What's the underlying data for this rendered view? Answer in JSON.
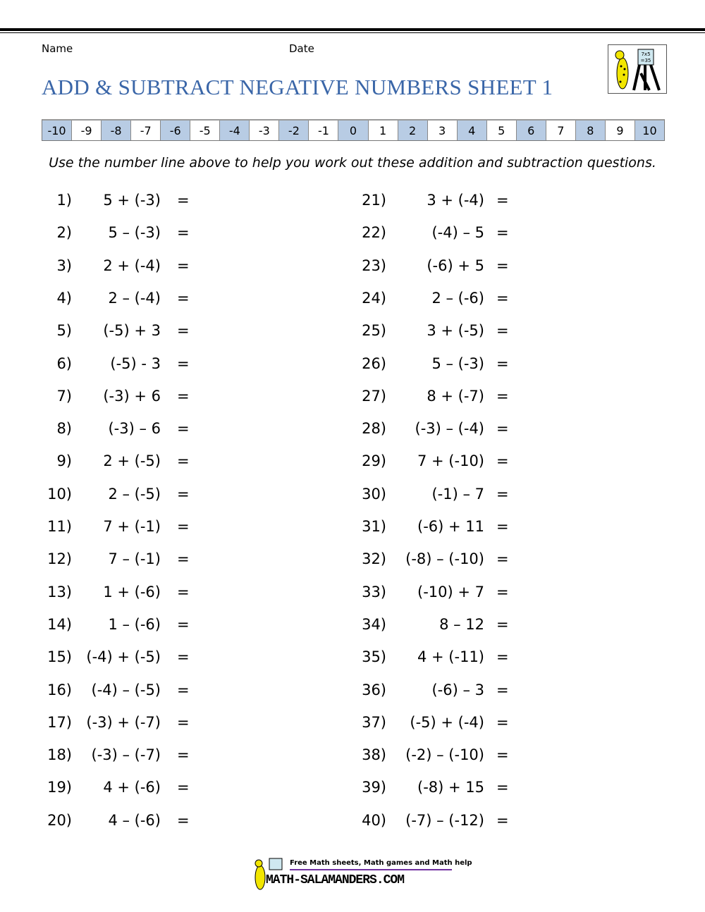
{
  "header": {
    "name_label": "Name",
    "date_label": "Date",
    "title": "ADD & SUBTRACT NEGATIVE NUMBERS SHEET 1",
    "logo_text": "7x5 = 35"
  },
  "number_line": [
    "-10",
    "-9",
    "-8",
    "-7",
    "-6",
    "-5",
    "-4",
    "-3",
    "-2",
    "-1",
    "0",
    "1",
    "2",
    "3",
    "4",
    "5",
    "6",
    "7",
    "8",
    "9",
    "10"
  ],
  "number_line_highlight_color": "#b8cce4",
  "title_color": "#3a66a8",
  "instructions": "Use the number line above to help you work out these addition and subtraction questions.",
  "questions": [
    {
      "n": "1)",
      "e": "5 + (-3)"
    },
    {
      "n": "2)",
      "e": "5 – (-3)"
    },
    {
      "n": "3)",
      "e": "2 + (-4)"
    },
    {
      "n": "4)",
      "e": "2 – (-4)"
    },
    {
      "n": "5)",
      "e": "(-5) + 3"
    },
    {
      "n": "6)",
      "e": "(-5) - 3"
    },
    {
      "n": "7)",
      "e": "(-3) + 6"
    },
    {
      "n": "8)",
      "e": "(-3) – 6"
    },
    {
      "n": "9)",
      "e": "2 + (-5)"
    },
    {
      "n": "10)",
      "e": "2 – (-5)"
    },
    {
      "n": "11)",
      "e": "7 + (-1)"
    },
    {
      "n": "12)",
      "e": "7 – (-1)"
    },
    {
      "n": "13)",
      "e": "1 + (-6)"
    },
    {
      "n": "14)",
      "e": "1 – (-6)"
    },
    {
      "n": "15)",
      "e": "(-4) + (-5)"
    },
    {
      "n": "16)",
      "e": "(-4) – (-5)"
    },
    {
      "n": "17)",
      "e": "(-3) + (-7)"
    },
    {
      "n": "18)",
      "e": "(-3) – (-7)"
    },
    {
      "n": "19)",
      "e": "4 + (-6)"
    },
    {
      "n": "20)",
      "e": "4 – (-6)"
    },
    {
      "n": "21)",
      "e": "3 + (-4)"
    },
    {
      "n": "22)",
      "e": "(-4) – 5"
    },
    {
      "n": "23)",
      "e": "(-6) + 5"
    },
    {
      "n": "24)",
      "e": "2 – (-6)"
    },
    {
      "n": "25)",
      "e": "3 + (-5)"
    },
    {
      "n": "26)",
      "e": "5 – (-3)"
    },
    {
      "n": "27)",
      "e": "8 + (-7)"
    },
    {
      "n": "28)",
      "e": "(-3) – (-4)"
    },
    {
      "n": "29)",
      "e": "7 + (-10)"
    },
    {
      "n": "30)",
      "e": "(-1) – 7"
    },
    {
      "n": "31)",
      "e": "(-6) + 11"
    },
    {
      "n": "32)",
      "e": "(-8) – (-10)"
    },
    {
      "n": "33)",
      "e": "(-10) + 7"
    },
    {
      "n": "34)",
      "e": "8 – 12"
    },
    {
      "n": "35)",
      "e": "4 + (-11)"
    },
    {
      "n": "36)",
      "e": "(-6) – 3"
    },
    {
      "n": "37)",
      "e": "(-5) + (-4)"
    },
    {
      "n": "38)",
      "e": "(-2) – (-10)"
    },
    {
      "n": "39)",
      "e": "(-8) + 15"
    },
    {
      "n": "40)",
      "e": "(-7) – (-12)"
    }
  ],
  "equals": "=",
  "footer": {
    "tagline": "Free Math sheets, Math games and Math help",
    "site": "MATH-SALAMANDERS.COM"
  }
}
